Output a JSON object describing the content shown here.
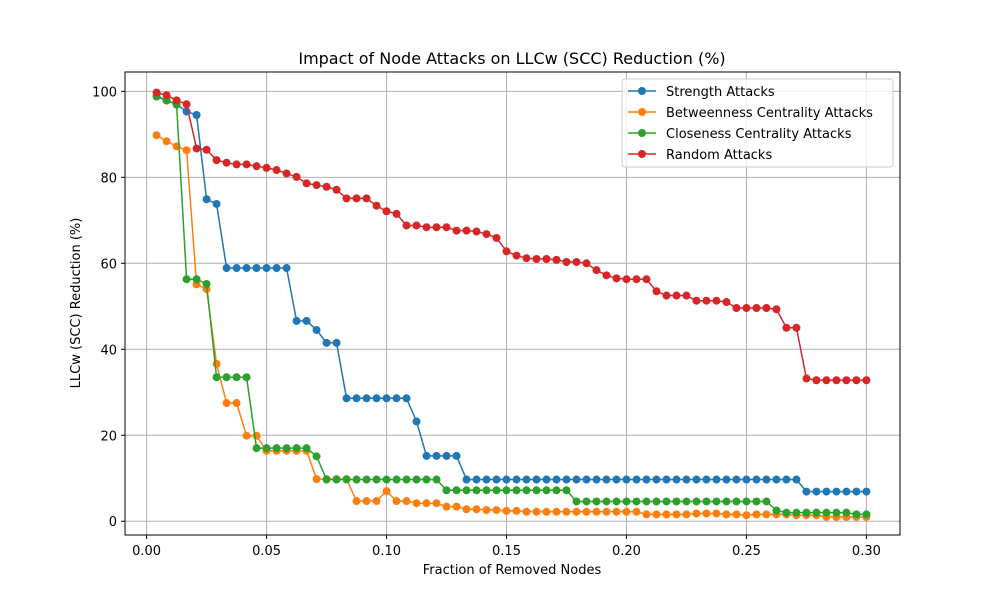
{
  "chart_data": {
    "type": "line",
    "title": "Impact of Node Attacks on LLCw (SCC) Reduction (%)",
    "xlabel": "Fraction of Removed Nodes",
    "ylabel": "LLCw (SCC) Reduction (%)",
    "xlim": [
      -0.009,
      0.314
    ],
    "ylim": [
      -3.2,
      104.5
    ],
    "xticks": [
      0.0,
      0.05,
      0.1,
      0.15,
      0.2,
      0.25,
      0.3
    ],
    "xtick_labels": [
      "0.00",
      "0.05",
      "0.10",
      "0.15",
      "0.20",
      "0.25",
      "0.30"
    ],
    "yticks": [
      0,
      20,
      40,
      60,
      80,
      100
    ],
    "ytick_labels": [
      "0",
      "20",
      "40",
      "60",
      "80",
      "100"
    ],
    "grid": true,
    "legend_position": "top-right",
    "x_step": 0.0041667,
    "x_count": 72,
    "series": [
      {
        "name": "Strength Attacks",
        "color": "#1f77b4",
        "values": [
          98.8,
          97.9,
          97.0,
          95.3,
          94.5,
          74.9,
          73.8,
          58.9,
          58.9,
          58.9,
          58.9,
          58.9,
          58.9,
          58.9,
          46.6,
          46.6,
          44.5,
          41.5,
          41.5,
          28.6,
          28.6,
          28.6,
          28.6,
          28.6,
          28.6,
          28.6,
          23.2,
          15.2,
          15.2,
          15.2,
          15.2,
          9.7,
          9.7,
          9.7,
          9.7,
          9.7,
          9.7,
          9.7,
          9.7,
          9.7,
          9.7,
          9.7,
          9.7,
          9.7,
          9.7,
          9.7,
          9.7,
          9.7,
          9.7,
          9.7,
          9.7,
          9.7,
          9.7,
          9.7,
          9.7,
          9.7,
          9.7,
          9.7,
          9.7,
          9.7,
          9.7,
          9.7,
          9.7,
          9.7,
          9.7,
          6.9,
          6.9,
          6.9,
          6.9,
          6.9,
          6.9,
          6.9
        ]
      },
      {
        "name": "Betweenness Centrality Attacks",
        "color": "#ff7f0e",
        "values": [
          89.8,
          88.4,
          87.2,
          86.3,
          55.1,
          54.0,
          36.6,
          27.5,
          27.5,
          19.9,
          19.9,
          16.4,
          16.4,
          16.4,
          16.4,
          16.4,
          9.8,
          9.8,
          9.8,
          9.8,
          4.7,
          4.7,
          4.7,
          7.0,
          4.7,
          4.7,
          4.2,
          4.2,
          4.2,
          3.4,
          3.4,
          2.8,
          2.8,
          2.6,
          2.6,
          2.4,
          2.4,
          2.2,
          2.2,
          2.2,
          2.2,
          2.2,
          2.2,
          2.2,
          2.2,
          2.2,
          2.2,
          2.2,
          2.2,
          1.6,
          1.6,
          1.6,
          1.6,
          1.6,
          1.8,
          1.8,
          1.8,
          1.6,
          1.6,
          1.4,
          1.6,
          1.6,
          1.6,
          1.6,
          1.4,
          1.4,
          1.4,
          1.0,
          1.0,
          1.0,
          1.0,
          1.0
        ]
      },
      {
        "name": "Closeness Centrality Attacks",
        "color": "#2ca02c",
        "values": [
          98.9,
          97.9,
          96.9,
          56.3,
          56.3,
          55.2,
          33.5,
          33.5,
          33.5,
          33.5,
          17.0,
          17.0,
          17.0,
          17.0,
          17.0,
          17.0,
          15.1,
          9.7,
          9.7,
          9.7,
          9.7,
          9.7,
          9.7,
          9.7,
          9.7,
          9.7,
          9.7,
          9.7,
          9.7,
          7.2,
          7.2,
          7.2,
          7.2,
          7.2,
          7.2,
          7.2,
          7.2,
          7.2,
          7.2,
          7.2,
          7.2,
          7.2,
          4.6,
          4.6,
          4.6,
          4.6,
          4.6,
          4.6,
          4.6,
          4.6,
          4.6,
          4.6,
          4.6,
          4.6,
          4.6,
          4.6,
          4.6,
          4.6,
          4.6,
          4.6,
          4.6,
          4.6,
          2.5,
          2.0,
          2.0,
          2.0,
          2.0,
          2.0,
          2.0,
          2.0,
          1.6,
          1.6
        ]
      },
      {
        "name": "Random Attacks",
        "color": "#d62728",
        "values": [
          99.7,
          99.1,
          97.9,
          97.0,
          86.7,
          86.4,
          84.0,
          83.4,
          83.0,
          83.0,
          82.6,
          82.2,
          81.7,
          80.9,
          80.1,
          78.6,
          78.2,
          77.8,
          77.1,
          75.1,
          75.1,
          75.1,
          73.4,
          72.1,
          71.5,
          68.8,
          68.8,
          68.4,
          68.4,
          68.4,
          67.6,
          67.6,
          67.4,
          66.8,
          65.9,
          62.8,
          61.8,
          61.2,
          61.0,
          61.0,
          60.8,
          60.3,
          60.3,
          60.0,
          58.4,
          57.2,
          56.5,
          56.3,
          56.3,
          56.3,
          53.5,
          52.5,
          52.5,
          52.5,
          51.3,
          51.3,
          51.3,
          51.0,
          49.6,
          49.6,
          49.6,
          49.6,
          49.3,
          45.0,
          45.0,
          33.2,
          32.8,
          32.8,
          32.8,
          32.8,
          32.8,
          32.8
        ]
      }
    ]
  }
}
